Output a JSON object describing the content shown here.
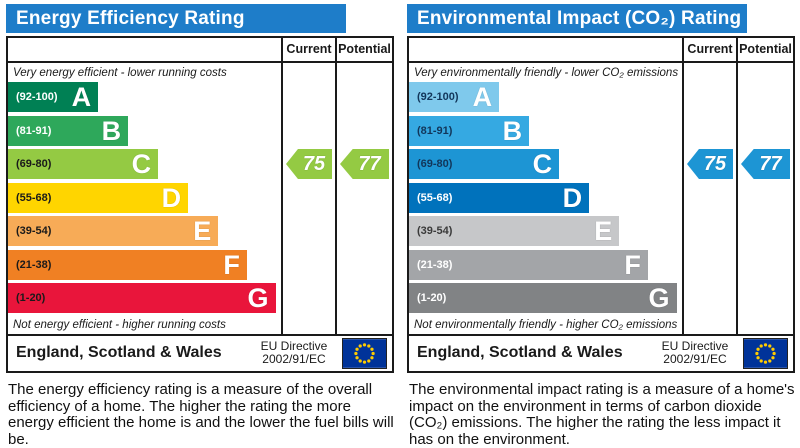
{
  "flag": {
    "field_color": "#003399",
    "star_color": "#ffcc00"
  },
  "panels": [
    {
      "title": "Energy Efficiency Rating",
      "columns": {
        "current": "Current",
        "potential": "Potential"
      },
      "top_caption": "Very energy efficient - lower running costs",
      "bottom_caption": "Not energy efficient - higher running costs",
      "bands": [
        {
          "letter": "A",
          "range": "(92-100)",
          "color": "#008054",
          "label_color": "#ffffff",
          "width_pct": 33
        },
        {
          "letter": "B",
          "range": "(81-91)",
          "color": "#2ea85b",
          "label_color": "#ffffff",
          "width_pct": 44
        },
        {
          "letter": "C",
          "range": "(69-80)",
          "color": "#94ca43",
          "label_color": "#1a1a1a",
          "width_pct": 55
        },
        {
          "letter": "D",
          "range": "(55-68)",
          "color": "#ffd500",
          "label_color": "#1a1a1a",
          "width_pct": 66
        },
        {
          "letter": "E",
          "range": "(39-54)",
          "color": "#f7ab57",
          "label_color": "#1a1a1a",
          "width_pct": 77
        },
        {
          "letter": "F",
          "range": "(21-38)",
          "color": "#f08023",
          "label_color": "#1a1a1a",
          "width_pct": 87.5
        },
        {
          "letter": "G",
          "range": "(1-20)",
          "color": "#e9153b",
          "label_color": "#1a1a1a",
          "width_pct": 98
        }
      ],
      "current": {
        "value": 75,
        "color": "#94ca43",
        "band_index": 2
      },
      "potential": {
        "value": 77,
        "color": "#94ca43",
        "band_index": 2
      },
      "footer": {
        "region": "England, Scotland & Wales",
        "directive_line1": "EU Directive",
        "directive_line2": "2002/91/EC"
      },
      "description": "The energy efficiency rating is a measure of the overall efficiency of a home. The higher the rating the more energy efficient the home is and the lower the fuel bills will be."
    },
    {
      "title": "Environmental Impact (CO₂) Rating",
      "columns": {
        "current": "Current",
        "potential": "Potential"
      },
      "top_caption": "Very environmentally friendly - lower CO₂ emissions",
      "bottom_caption": "Not environmentally friendly - higher CO₂ emissions",
      "bands": [
        {
          "letter": "A",
          "range": "(92-100)",
          "color": "#7fc9ec",
          "label_color": "#12365a",
          "width_pct": 33
        },
        {
          "letter": "B",
          "range": "(81-91)",
          "color": "#35a9e2",
          "label_color": "#12365a",
          "width_pct": 44
        },
        {
          "letter": "C",
          "range": "(69-80)",
          "color": "#1d95d4",
          "label_color": "#12365a",
          "width_pct": 55
        },
        {
          "letter": "D",
          "range": "(55-68)",
          "color": "#0072bc",
          "label_color": "#ffffff",
          "width_pct": 66
        },
        {
          "letter": "E",
          "range": "(39-54)",
          "color": "#c6c7c9",
          "label_color": "#3a3a3a",
          "width_pct": 77
        },
        {
          "letter": "F",
          "range": "(21-38)",
          "color": "#a3a5a8",
          "label_color": "#ffffff",
          "width_pct": 87.5
        },
        {
          "letter": "G",
          "range": "(1-20)",
          "color": "#818385",
          "label_color": "#ffffff",
          "width_pct": 98
        }
      ],
      "current": {
        "value": 75,
        "color": "#1d95d4",
        "band_index": 2
      },
      "potential": {
        "value": 77,
        "color": "#1d95d4",
        "band_index": 2
      },
      "footer": {
        "region": "England, Scotland & Wales",
        "directive_line1": "EU Directive",
        "directive_line2": "2002/91/EC"
      },
      "description": "The environmental impact rating is a measure of a home's impact on the environment in terms of carbon dioxide (CO₂) emissions. The higher the rating the less impact it has on the environment."
    }
  ],
  "chart_data": [
    {
      "type": "bar",
      "title": "Energy Efficiency Rating",
      "categories": [
        "A (92-100)",
        "B (81-91)",
        "C (69-80)",
        "D (55-68)",
        "E (39-54)",
        "F (21-38)",
        "G (1-20)"
      ],
      "values": [
        33,
        44,
        55,
        66,
        77,
        87.5,
        98
      ],
      "series": [
        {
          "name": "Current",
          "values": [
            75
          ],
          "band": "C"
        },
        {
          "name": "Potential",
          "values": [
            77
          ],
          "band": "C"
        }
      ],
      "xlabel": "",
      "ylabel": "",
      "xlim": [
        1,
        100
      ],
      "annotations": [
        "Very energy efficient - lower running costs",
        "Not energy efficient - higher running costs",
        "England, Scotland & Wales",
        "EU Directive 2002/91/EC"
      ]
    },
    {
      "type": "bar",
      "title": "Environmental Impact (CO₂) Rating",
      "categories": [
        "A (92-100)",
        "B (81-91)",
        "C (69-80)",
        "D (55-68)",
        "E (39-54)",
        "F (21-38)",
        "G (1-20)"
      ],
      "values": [
        33,
        44,
        55,
        66,
        77,
        87.5,
        98
      ],
      "series": [
        {
          "name": "Current",
          "values": [
            75
          ],
          "band": "C"
        },
        {
          "name": "Potential",
          "values": [
            77
          ],
          "band": "C"
        }
      ],
      "xlabel": "",
      "ylabel": "",
      "xlim": [
        1,
        100
      ],
      "annotations": [
        "Very environmentally friendly - lower CO₂ emissions",
        "Not environmentally friendly - higher CO₂ emissions",
        "England, Scotland & Wales",
        "EU Directive 2002/91/EC"
      ]
    }
  ]
}
